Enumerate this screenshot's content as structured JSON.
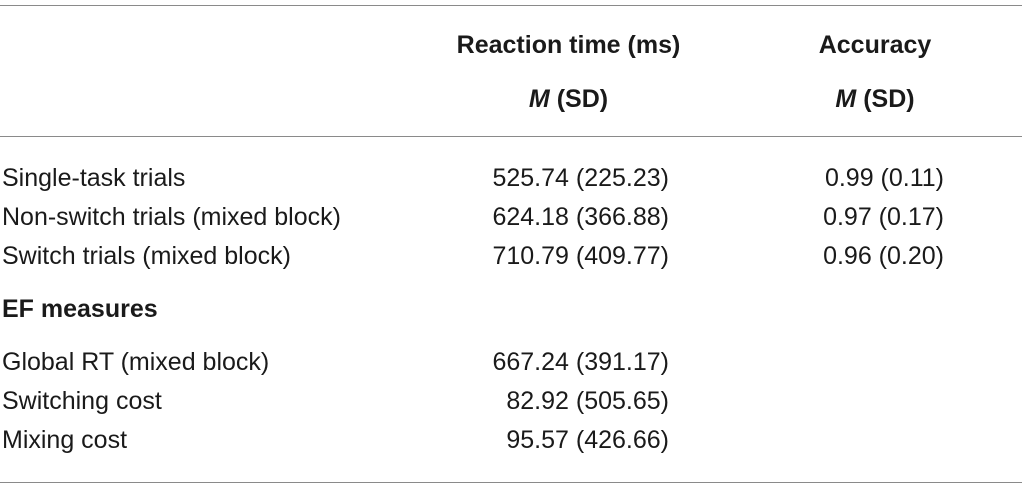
{
  "columns": {
    "rt": {
      "line1": "Reaction time (ms)",
      "stat_italic": "M",
      "stat_rest": " (SD)"
    },
    "accuracy": {
      "line1": "Accuracy",
      "stat_italic": "M",
      "stat_rest": " (SD)"
    }
  },
  "rows": [
    {
      "label": "Single-task trials",
      "rt": "525.74 (225.23)",
      "accuracy": "0.99 (0.11)"
    },
    {
      "label": "Non-switch trials (mixed block)",
      "rt": "624.18 (366.88)",
      "accuracy": "0.97 (0.17)"
    },
    {
      "label": "Switch trials (mixed block)",
      "rt": "710.79 (409.77)",
      "accuracy": "0.96 (0.20)"
    }
  ],
  "section": {
    "title": "EF measures"
  },
  "ef_rows": [
    {
      "label": "Global RT (mixed block)",
      "rt": "667.24 (391.17)"
    },
    {
      "label": "Switching cost",
      "rt": "82.92 (505.65)"
    },
    {
      "label": "Mixing cost",
      "rt": "95.57 (426.66)"
    }
  ]
}
